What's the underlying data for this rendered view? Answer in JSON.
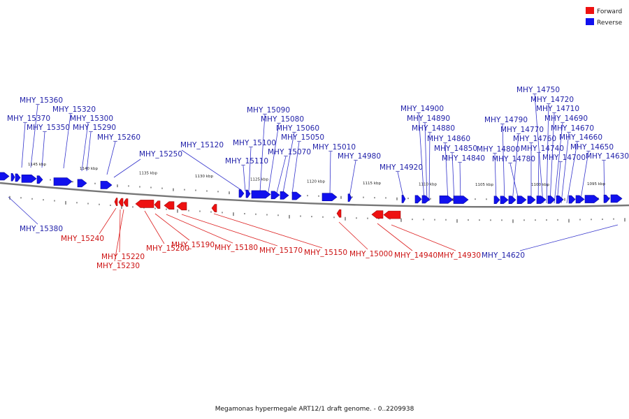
{
  "caption": "Megamonas hypermegale ART12/1 draft genome. - 0..2209938",
  "colors": {
    "forward": "#ee1111",
    "reverse": "#1111ee",
    "backbone": "#777777",
    "label_reverse": "#2222aa",
    "label_forward": "#cc1111",
    "leader_reverse": "#3333cc",
    "leader_forward": "#dd2222"
  },
  "legend": [
    {
      "id": "forward",
      "label": "Forward",
      "color": "#ee1111"
    },
    {
      "id": "reverse",
      "label": "Reverse",
      "color": "#1111ee"
    }
  ],
  "ticks": [
    "1145 kbp",
    "1140 kbp",
    "1135 kbp",
    "1130 kbp",
    "1125 kbp",
    "1120 kbp",
    "1115 kbp",
    "1110 kbp",
    "1105 kbp",
    "1100 kbp",
    "1095 kbp"
  ],
  "genes": [
    {
      "name": "MHY_15360",
      "strand": "reverse"
    },
    {
      "name": "MHY_15370",
      "strand": "reverse"
    },
    {
      "name": "MHY_15350",
      "strand": "reverse"
    },
    {
      "name": "MHY_15320",
      "strand": "reverse"
    },
    {
      "name": "MHY_15300",
      "strand": "reverse"
    },
    {
      "name": "MHY_15290",
      "strand": "reverse"
    },
    {
      "name": "MHY_15260",
      "strand": "reverse"
    },
    {
      "name": "MHY_15250",
      "strand": "reverse"
    },
    {
      "name": "MHY_15120",
      "strand": "reverse"
    },
    {
      "name": "MHY_15090",
      "strand": "reverse"
    },
    {
      "name": "MHY_15080",
      "strand": "reverse"
    },
    {
      "name": "MHY_15060",
      "strand": "reverse"
    },
    {
      "name": "MHY_15050",
      "strand": "reverse"
    },
    {
      "name": "MHY_15100",
      "strand": "reverse"
    },
    {
      "name": "MHY_15070",
      "strand": "reverse"
    },
    {
      "name": "MHY_15110",
      "strand": "reverse"
    },
    {
      "name": "MHY_15010",
      "strand": "reverse"
    },
    {
      "name": "MHY_14980",
      "strand": "reverse"
    },
    {
      "name": "MHY_14920",
      "strand": "reverse"
    },
    {
      "name": "MHY_14900",
      "strand": "reverse"
    },
    {
      "name": "MHY_14890",
      "strand": "reverse"
    },
    {
      "name": "MHY_14880",
      "strand": "reverse"
    },
    {
      "name": "MHY_14860",
      "strand": "reverse"
    },
    {
      "name": "MHY_14850",
      "strand": "reverse"
    },
    {
      "name": "MHY_14840",
      "strand": "reverse"
    },
    {
      "name": "MHY_14790",
      "strand": "reverse"
    },
    {
      "name": "MHY_14770",
      "strand": "reverse"
    },
    {
      "name": "MHY_14800",
      "strand": "reverse"
    },
    {
      "name": "MHY_14780",
      "strand": "reverse"
    },
    {
      "name": "MHY_14760",
      "strand": "reverse"
    },
    {
      "name": "MHY_14740",
      "strand": "reverse"
    },
    {
      "name": "MHY_14750",
      "strand": "reverse"
    },
    {
      "name": "MHY_14720",
      "strand": "reverse"
    },
    {
      "name": "MHY_14710",
      "strand": "reverse"
    },
    {
      "name": "MHY_14690",
      "strand": "reverse"
    },
    {
      "name": "MHY_14670",
      "strand": "reverse"
    },
    {
      "name": "MHY_14660",
      "strand": "reverse"
    },
    {
      "name": "MHY_14700",
      "strand": "reverse"
    },
    {
      "name": "MHY_14650",
      "strand": "reverse"
    },
    {
      "name": "MHY_14630",
      "strand": "reverse"
    },
    {
      "name": "MHY_15380",
      "strand": "reverse"
    },
    {
      "name": "MHY_14620",
      "strand": "reverse"
    },
    {
      "name": "MHY_15240",
      "strand": "forward"
    },
    {
      "name": "MHY_15220",
      "strand": "forward"
    },
    {
      "name": "MHY_15230",
      "strand": "forward"
    },
    {
      "name": "MHY_15200",
      "strand": "forward"
    },
    {
      "name": "MHY_15190",
      "strand": "forward"
    },
    {
      "name": "MHY_15180",
      "strand": "forward"
    },
    {
      "name": "MHY_15170",
      "strand": "forward"
    },
    {
      "name": "MHY_15150",
      "strand": "forward"
    },
    {
      "name": "MHY_15000",
      "strand": "forward"
    },
    {
      "name": "MHY_14940",
      "strand": "forward"
    },
    {
      "name": "MHY_14930",
      "strand": "forward"
    }
  ]
}
